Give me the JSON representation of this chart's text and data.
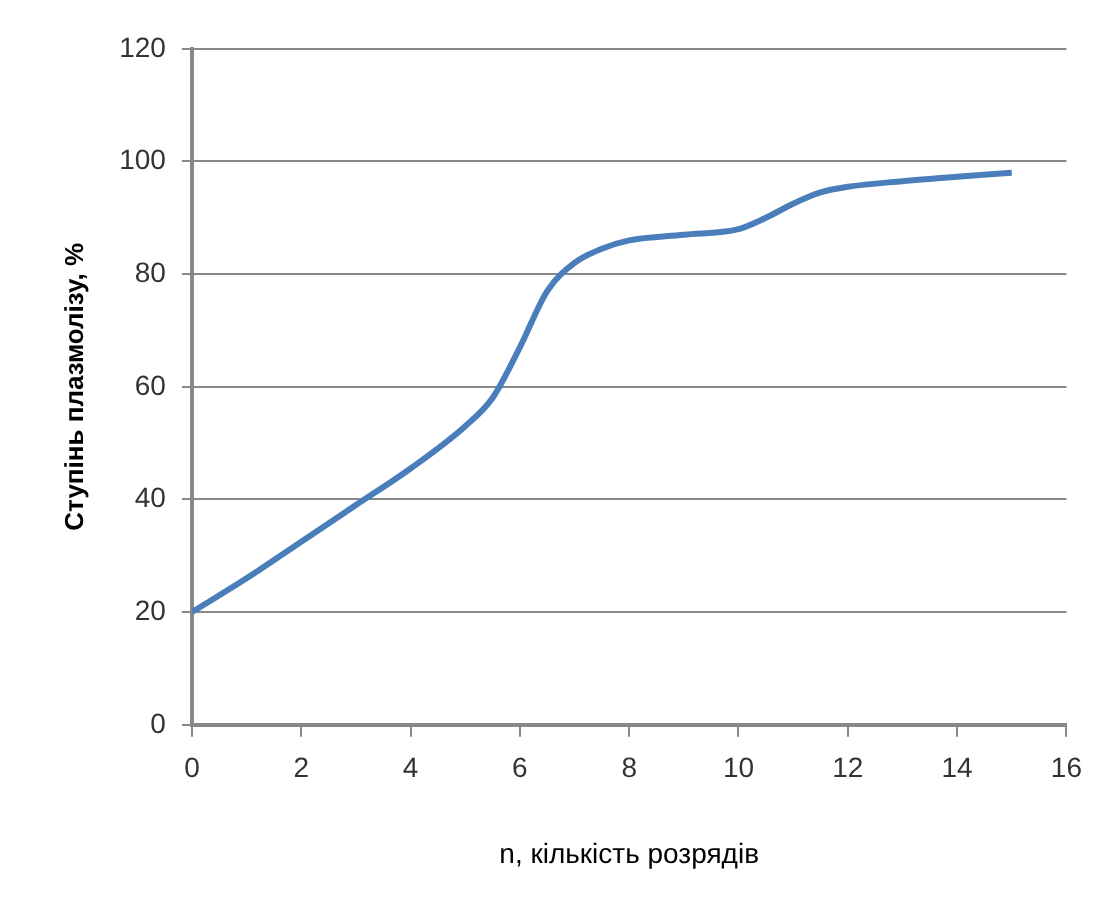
{
  "chart_data": {
    "type": "line",
    "xlabel": "n, кількість розрядів",
    "ylabel": "Ступінь плазмолізу, %",
    "x": [
      0,
      1,
      2,
      3,
      4,
      5,
      5.5,
      6,
      6.5,
      7,
      7.5,
      8,
      9,
      10,
      10.5,
      11,
      11.5,
      12,
      13,
      14,
      15
    ],
    "series": [
      {
        "color": "#4a7ebb",
        "values": [
          20,
          26,
          32.5,
          39,
          45.5,
          53,
          58,
          67,
          77,
          82,
          84.5,
          86,
          87,
          88,
          90,
          92.5,
          94.5,
          95.5,
          96.5,
          97.3,
          98
        ]
      }
    ],
    "xlim": [
      0,
      16
    ],
    "xticks": [
      0,
      2,
      4,
      6,
      8,
      10,
      12,
      14,
      16
    ],
    "ylim": [
      0,
      120
    ],
    "yticks": [
      0,
      20,
      40,
      60,
      80,
      100,
      120
    ],
    "grid": "y",
    "legend": false,
    "marker": "none",
    "line_style": "solid"
  }
}
